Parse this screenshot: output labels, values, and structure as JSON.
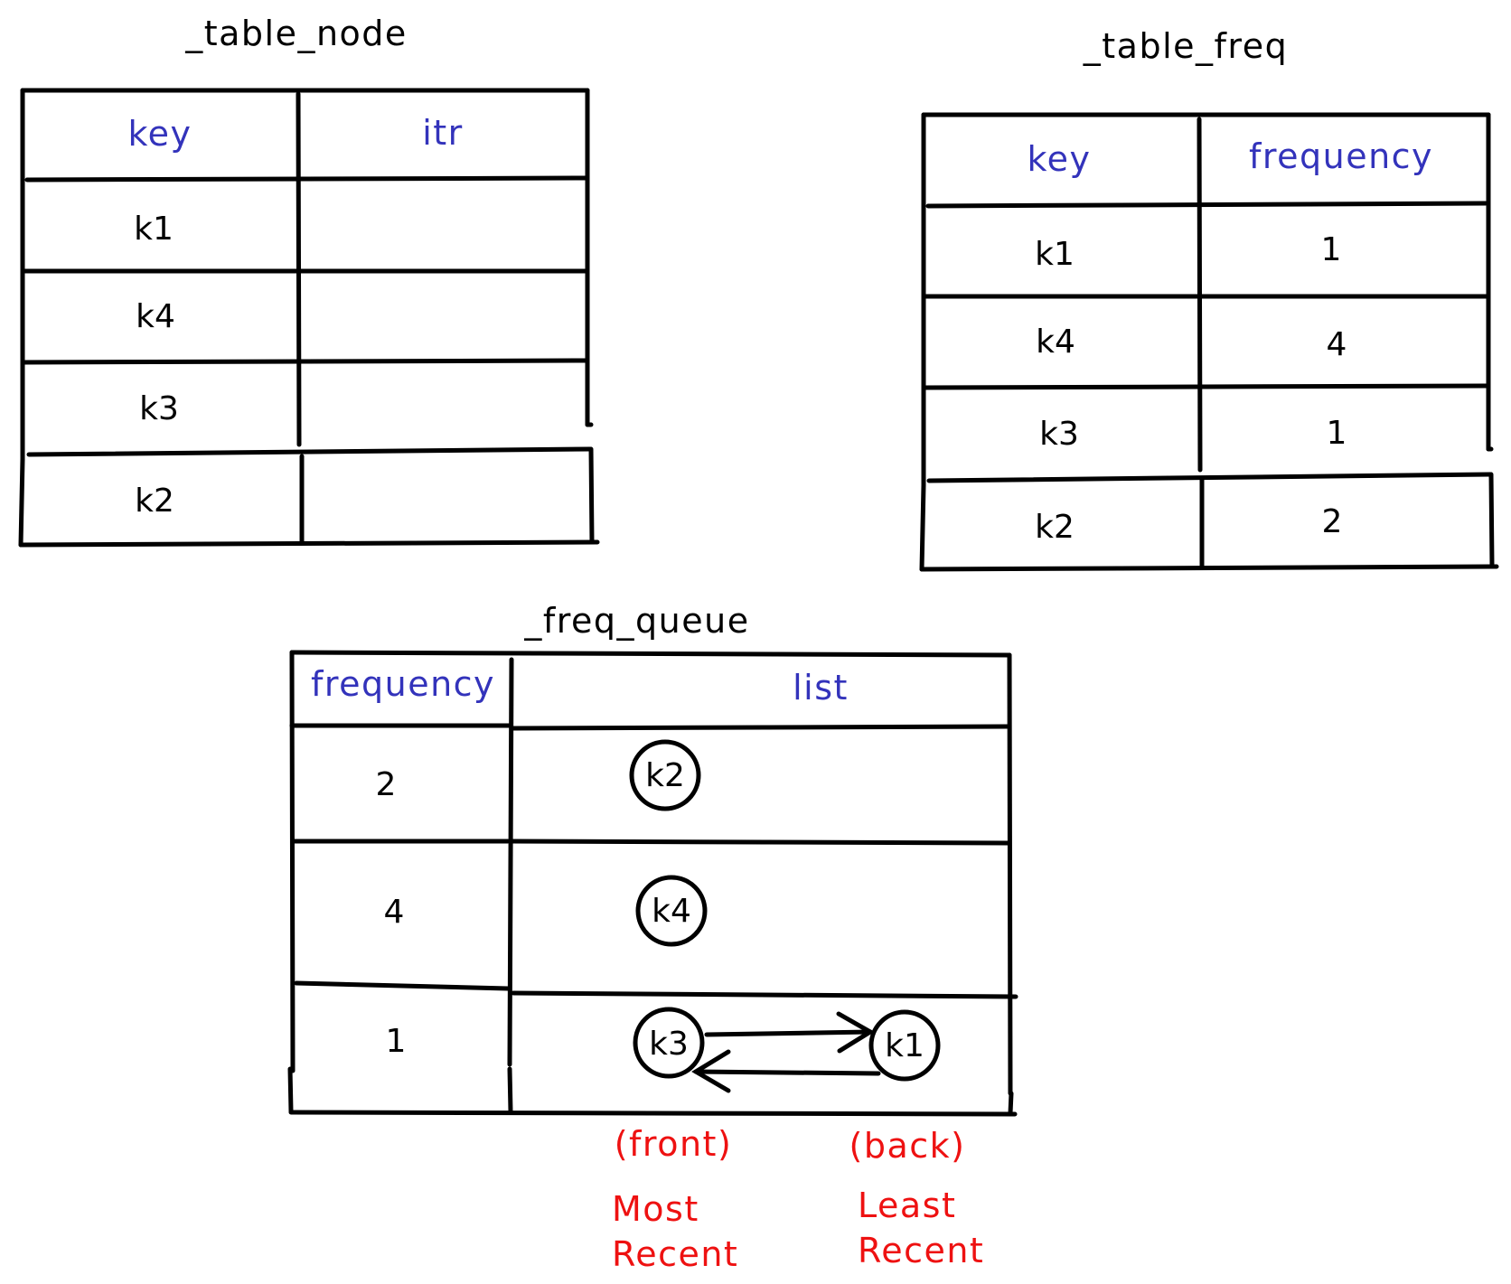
{
  "diagram": {
    "accent_color": "#3333bb",
    "note_color": "#ee1111",
    "table_node": {
      "title": "_table_node",
      "headers": [
        "key",
        "itr"
      ],
      "rows": [
        {
          "key": "k1",
          "itr": ""
        },
        {
          "key": "k4",
          "itr": ""
        },
        {
          "key": "k3",
          "itr": ""
        },
        {
          "key": "k2",
          "itr": ""
        }
      ]
    },
    "table_freq": {
      "title": "_table_freq",
      "headers": [
        "key",
        "frequency"
      ],
      "rows": [
        {
          "key": "k1",
          "frequency": "1"
        },
        {
          "key": "k4",
          "frequency": "4"
        },
        {
          "key": "k3",
          "frequency": "1"
        },
        {
          "key": "k2",
          "frequency": "2"
        }
      ]
    },
    "freq_queue": {
      "title": "_freq_queue",
      "headers": [
        "frequency",
        "list"
      ],
      "rows": [
        {
          "frequency": "2",
          "nodes": [
            "k2"
          ]
        },
        {
          "frequency": "4",
          "nodes": [
            "k4"
          ]
        },
        {
          "frequency": "1",
          "nodes": [
            "k3",
            "k1"
          ]
        }
      ]
    },
    "annotations": {
      "front": "(front)",
      "back": "(back)",
      "most_line1": "Most",
      "most_line2": "Recent",
      "least_line1": "Least",
      "least_line2": "Recent"
    }
  }
}
